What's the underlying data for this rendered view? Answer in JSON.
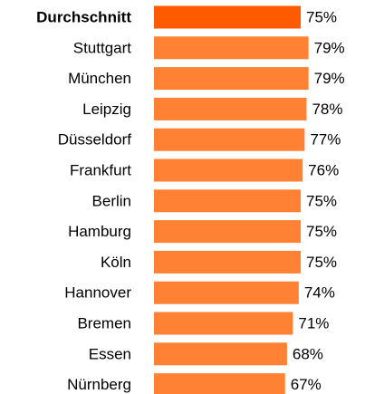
{
  "chart_data": {
    "type": "barh",
    "categories": [
      "Durchschnitt",
      "Stuttgart",
      "München",
      "Leipzig",
      "Düsseldorf",
      "Frankfurt",
      "Berlin",
      "Hamburg",
      "Köln",
      "Hannover",
      "Bremen",
      "Essen",
      "Nürnberg"
    ],
    "values": [
      75,
      79,
      79,
      78,
      77,
      76,
      75,
      75,
      75,
      74,
      71,
      68,
      67
    ],
    "value_labels": [
      "75%",
      "79%",
      "79%",
      "78%",
      "77%",
      "76%",
      "75%",
      "75%",
      "75%",
      "74%",
      "71%",
      "68%",
      "67%"
    ],
    "colors": [
      "#ff5a00",
      "#ff8133",
      "#ff8133",
      "#ff8133",
      "#ff8133",
      "#ff8133",
      "#ff8133",
      "#ff8133",
      "#ff8133",
      "#ff8133",
      "#ff8133",
      "#ff8133",
      "#ff8133"
    ],
    "highlight": 0,
    "xlim": [
      0,
      100
    ]
  }
}
